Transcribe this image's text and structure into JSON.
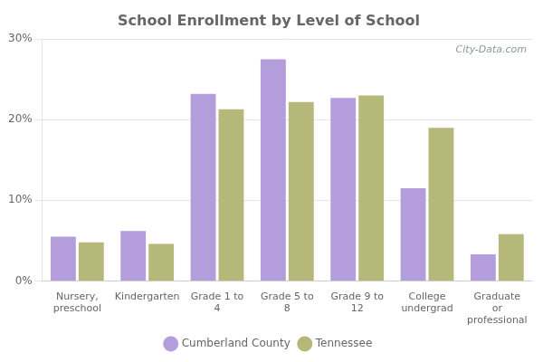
{
  "chart_data": {
    "type": "bar",
    "title": "School Enrollment by Level of School",
    "categories": [
      "Nursery,\npreschool",
      "Kindergarten",
      "Grade 1 to\n4",
      "Grade 5 to\n8",
      "Grade 9 to\n12",
      "College\nundergrad",
      "Graduate\nor\nprofessional"
    ],
    "series": [
      {
        "name": "Cumberland County",
        "color": "#b39ddb",
        "values": [
          5.5,
          6.2,
          23.2,
          27.5,
          22.7,
          11.5,
          3.3
        ]
      },
      {
        "name": "Tennessee",
        "color": "#b5b878",
        "values": [
          4.8,
          4.6,
          21.3,
          22.2,
          23.0,
          19.0,
          5.8
        ]
      }
    ],
    "ylim": [
      0,
      30
    ],
    "yticks": [
      {
        "value": 0,
        "label": "0%"
      },
      {
        "value": 10,
        "label": "10%"
      },
      {
        "value": 20,
        "label": "20%"
      },
      {
        "value": 30,
        "label": "30%"
      }
    ],
    "grid": true,
    "legend": "bottom",
    "annotations": [
      "City-Data.com"
    ]
  }
}
